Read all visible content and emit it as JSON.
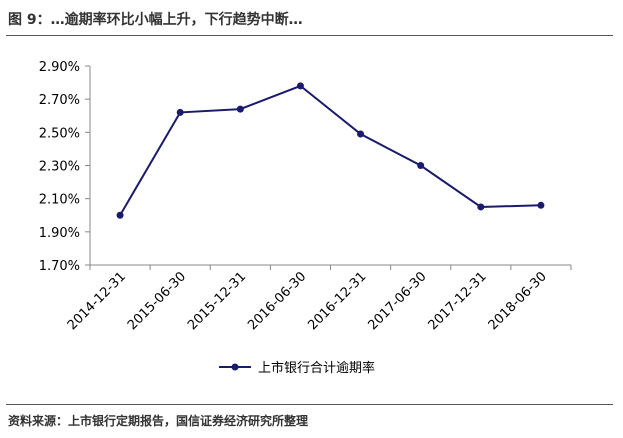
{
  "caption": "图 9：…逾期率环比小幅上升，下行趋势中断…",
  "source": "资料来源：上市银行定期报告，国信证券经济研究所整理",
  "chart_data": {
    "type": "line",
    "categories": [
      "2014-12-31",
      "2015-06-30",
      "2015-12-31",
      "2016-06-30",
      "2016-12-31",
      "2017-06-30",
      "2017-12-31",
      "2018-06-30"
    ],
    "series": [
      {
        "name": "上市银行合计逾期率",
        "values": [
          2.0,
          2.62,
          2.64,
          2.78,
          2.49,
          2.3,
          2.05,
          2.06
        ],
        "color": "#1a1a6e"
      }
    ],
    "y_ticks": [
      "2.90%",
      "2.70%",
      "2.50%",
      "2.30%",
      "2.10%",
      "1.90%",
      "1.70%"
    ],
    "ylim": [
      1.7,
      2.9
    ],
    "legend_position": "bottom-center",
    "grid": false
  }
}
